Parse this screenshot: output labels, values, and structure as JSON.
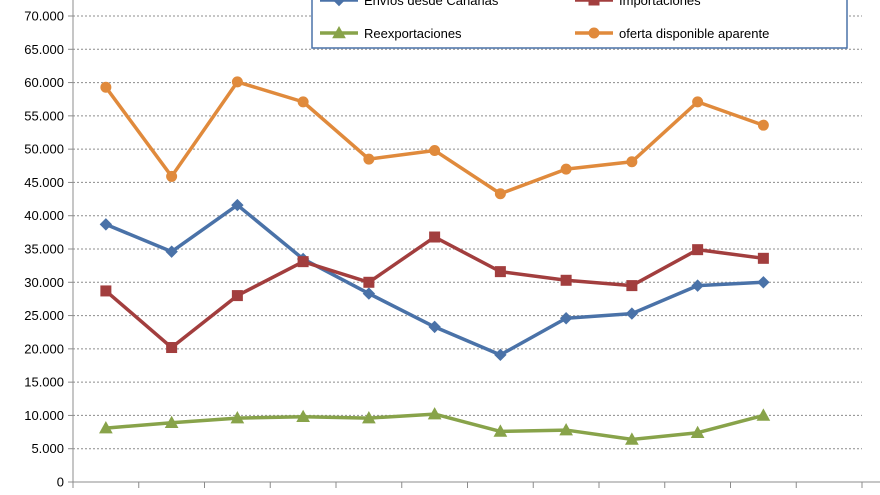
{
  "chart_data": {
    "type": "line",
    "categories": [
      "",
      "",
      "",
      "",
      "",
      "",
      "",
      "",
      "",
      "",
      ""
    ],
    "ylim": [
      0,
      70000
    ],
    "yticks": [
      0,
      5000,
      10000,
      15000,
      20000,
      25000,
      30000,
      35000,
      40000,
      45000,
      50000,
      55000,
      60000,
      65000,
      70000
    ],
    "ytick_labels": [
      "0",
      "5.000",
      "10.000",
      "15.000",
      "20.000",
      "25.000",
      "30.000",
      "35.000",
      "40.000",
      "45.000",
      "50.000",
      "55.000",
      "60.000",
      "65.000",
      "70.000"
    ],
    "grid": "horizontal dashed",
    "legend_position": "top-right",
    "series": [
      {
        "name": "Envíos desde Canarias",
        "color": "#4a72a8",
        "marker": "diamond",
        "values": [
          38700,
          34600,
          41600,
          33500,
          28300,
          23300,
          19100,
          24600,
          25300,
          29500,
          30000
        ]
      },
      {
        "name": "Importaciones",
        "color": "#a23e3e",
        "marker": "square",
        "values": [
          28700,
          20200,
          28000,
          33100,
          30000,
          36800,
          31600,
          30300,
          29500,
          34900,
          33600
        ]
      },
      {
        "name": "Reexportaciones",
        "color": "#88a34a",
        "marker": "triangle",
        "values": [
          8100,
          8900,
          9600,
          9800,
          9600,
          10200,
          7600,
          7800,
          6400,
          7400,
          10000
        ]
      },
      {
        "name": "oferta disponible aparente",
        "color": "#e08a3c",
        "marker": "circle",
        "values": [
          59300,
          45900,
          60100,
          57100,
          48500,
          49800,
          43300,
          47000,
          48100,
          57100,
          53600
        ]
      }
    ]
  }
}
